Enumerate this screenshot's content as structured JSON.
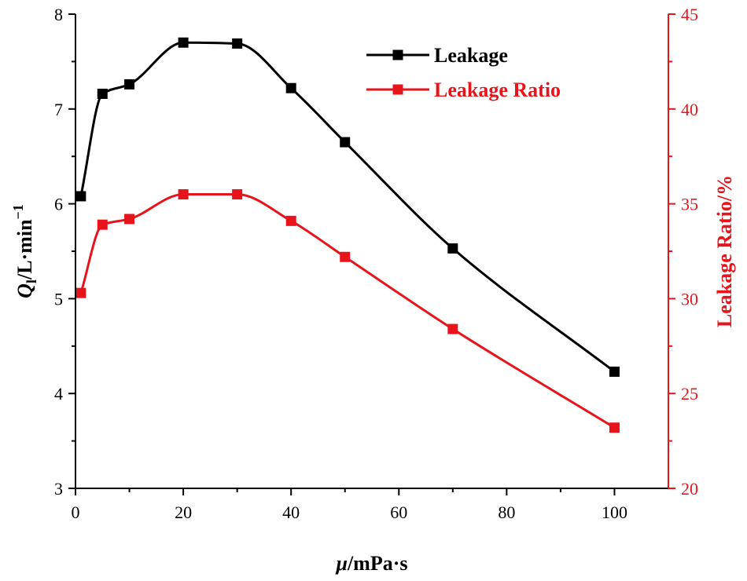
{
  "chart_data": {
    "type": "line",
    "title": "",
    "x": [
      1,
      5,
      10,
      20,
      30,
      40,
      50,
      70,
      100
    ],
    "xlim": [
      0,
      110
    ],
    "xticks": [
      0,
      20,
      40,
      60,
      80,
      100
    ],
    "xlabel": {
      "main": "μ",
      "unit": "/mPa·s"
    },
    "left_axis": {
      "label": {
        "main": "Q",
        "sub": "l",
        "unit": "/L·min",
        "sup": "−1"
      },
      "ylim": [
        3,
        8
      ],
      "ticks": [
        3,
        4,
        5,
        6,
        7,
        8
      ],
      "color": "#000000"
    },
    "right_axis": {
      "label": "Leakage Ratio/%",
      "ylim": [
        20,
        45
      ],
      "ticks": [
        20,
        25,
        30,
        35,
        40,
        45
      ],
      "color": "#e8141b"
    },
    "series": [
      {
        "name": "Leakage",
        "axis": "left",
        "color": "#000000",
        "values": [
          6.08,
          7.16,
          7.26,
          7.7,
          7.69,
          7.22,
          6.65,
          5.53,
          4.23
        ]
      },
      {
        "name": "Leakage Ratio",
        "axis": "right",
        "color": "#e8141b",
        "values": [
          30.3,
          33.9,
          34.2,
          35.5,
          35.5,
          34.1,
          32.2,
          28.4,
          23.2
        ]
      }
    ],
    "legend_position": "top-right",
    "grid": false
  }
}
